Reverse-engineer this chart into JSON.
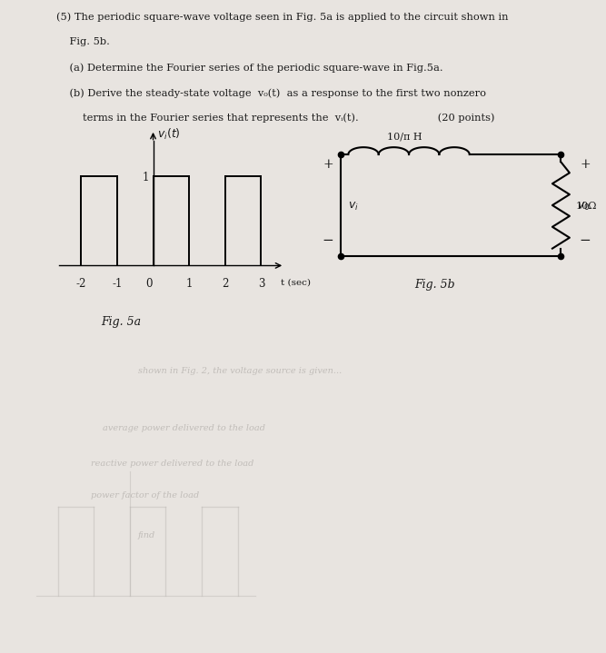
{
  "background_color": "#e8e4e0",
  "text_color": "#1a1a1a",
  "fig5a_ylabel": "$v_i(t)$",
  "fig5a_xlabel": "t (sec)",
  "fig5a_xticks": [
    -2,
    -1,
    0,
    1,
    2,
    3
  ],
  "fig5a_label": "Fig. 5a",
  "fig5b_label": "Fig. 5b",
  "fig5b_inductor_label": "10/π H",
  "fig5b_resistor_label": "10Ω",
  "fig5b_vi_label": "v_i",
  "fig5b_vo_label": "v_0",
  "square_wave_segments": [
    {
      "x": [
        -2,
        -1
      ],
      "y": 1
    },
    {
      "x": [
        -1,
        0
      ],
      "y": 0
    },
    {
      "x": [
        0,
        1
      ],
      "y": 1
    },
    {
      "x": [
        1,
        2
      ],
      "y": 0
    },
    {
      "x": [
        2,
        3
      ],
      "y": 1
    }
  ],
  "text_lines": [
    "(5) The periodic square-wave voltage seen in Fig. 5a is applied to the circuit shown in",
    "    Fig. 5b.",
    "    (a) Determine the Fourier series of the periodic square-wave in Fig.5a.",
    "    (b) Derive the steady-state voltage  v₀(t)  as a response to the first two nonzero",
    "        terms in the Fourier series that represents the  vᵢ(t).                        (20 points)"
  ],
  "faded_color": "#b0aca8",
  "faded_alpha": 0.7
}
